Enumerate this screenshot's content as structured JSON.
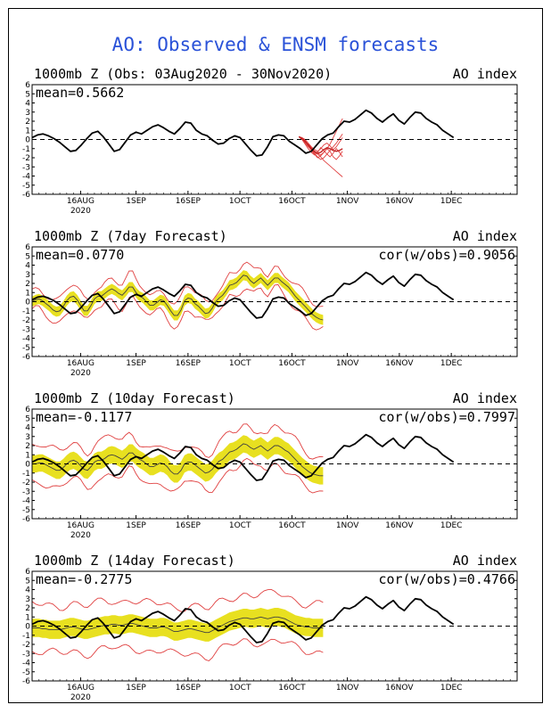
{
  "main_title": "AO: Observed & ENSM forecasts",
  "colors": {
    "title": "#2a52d8",
    "obs": "#000000",
    "forecast_band": "#e8e020",
    "forecast_spread": "#e04040",
    "ensemble_mean": "#404040"
  },
  "chart_data": [
    {
      "type": "line",
      "title": "1000mb Z (Obs: 03Aug2020 - 30Nov2020)",
      "index_label": "AO index",
      "mean_label": "mean=0.5662",
      "cor_label": "",
      "ylim": [
        -6,
        6
      ],
      "yticks": [
        "6",
        "5",
        "4",
        "3",
        "2",
        "1",
        "0",
        "-1",
        "-2",
        "-3",
        "-4",
        "-5",
        "-6"
      ],
      "xlim": [
        0,
        140
      ],
      "month_ticks": [
        {
          "day": 14,
          "label": "16AUG",
          "sub": "2020"
        },
        {
          "day": 30,
          "label": "1SEP",
          "sub": ""
        },
        {
          "day": 45,
          "label": "16SEP",
          "sub": ""
        },
        {
          "day": 60,
          "label": "1OCT",
          "sub": ""
        },
        {
          "day": 75,
          "label": "16OCT",
          "sub": ""
        },
        {
          "day": 91,
          "label": "1NOV",
          "sub": ""
        },
        {
          "day": 106,
          "label": "16NOV",
          "sub": ""
        },
        {
          "day": 121,
          "label": "1DEC",
          "sub": ""
        }
      ],
      "observed": [
        0.2,
        0.5,
        0.6,
        0.4,
        0.1,
        -0.3,
        -0.8,
        -1.3,
        -1.2,
        -0.6,
        0.1,
        0.7,
        0.9,
        0.3,
        -0.5,
        -1.3,
        -1.1,
        -0.3,
        0.5,
        0.8,
        0.6,
        1.0,
        1.4,
        1.6,
        1.3,
        0.9,
        0.6,
        1.2,
        1.9,
        1.8,
        1.0,
        0.6,
        0.4,
        -0.1,
        -0.5,
        -0.4,
        0.1,
        0.4,
        0.2,
        -0.5,
        -1.2,
        -1.8,
        -1.7,
        -0.8,
        0.3,
        0.5,
        0.4,
        -0.2,
        -0.6,
        -1.0,
        -1.5,
        -1.3,
        -0.6,
        0.1,
        0.5,
        0.7,
        1.4,
        2.0,
        1.9,
        2.2,
        2.7,
        3.2,
        2.9,
        2.3,
        1.9,
        2.4,
        2.8,
        2.1,
        1.7,
        2.4,
        3.0,
        2.9,
        2.3,
        1.9,
        1.6,
        1.0,
        0.6,
        0.2
      ],
      "forecast_mean": [
        0.3,
        0.1,
        -0.2,
        -0.6,
        -1.0,
        -1.3,
        -1.5,
        -1.4,
        -1.1,
        -0.9,
        -1.0,
        -1.2,
        -1.3,
        -1.2,
        -1.0
      ],
      "forecast_band_width": [],
      "forecast_spread": [],
      "ensemble_members": [
        [
          0.3,
          0.2,
          -0.2,
          -0.7,
          -1.2,
          -1.6,
          -2.0,
          -1.8,
          -1.4,
          -1.0,
          -0.5,
          0.2,
          0.9,
          1.6,
          2.3
        ],
        [
          0.3,
          0.0,
          -0.4,
          -0.8,
          -1.1,
          -1.4,
          -1.6,
          -1.9,
          -2.3,
          -2.6,
          -2.9,
          -3.2,
          -3.5,
          -3.8,
          -4.1
        ],
        [
          0.3,
          0.1,
          -0.3,
          -0.5,
          -0.9,
          -1.3,
          -1.5,
          -1.7,
          -1.4,
          -1.0,
          -1.3,
          -1.9,
          -2.2,
          -1.8,
          -1.3
        ],
        [
          0.3,
          0.2,
          0.0,
          -0.4,
          -0.8,
          -1.1,
          -1.3,
          -1.0,
          -0.6,
          -0.4,
          -0.7,
          -1.1,
          -0.8,
          -0.3,
          0.2
        ],
        [
          0.3,
          0.0,
          -0.5,
          -1.0,
          -1.4,
          -1.7,
          -1.4,
          -0.9,
          -1.2,
          -1.6,
          -1.9,
          -1.5,
          -1.0,
          -1.4,
          -1.9
        ],
        [
          0.3,
          0.1,
          -0.1,
          -0.6,
          -1.1,
          -1.5,
          -1.9,
          -2.2,
          -2.0,
          -1.6,
          -1.2,
          -0.8,
          -0.4,
          0.1,
          0.6
        ]
      ]
    },
    {
      "type": "line",
      "title": "1000mb Z (7day Forecast)",
      "index_label": "AO index",
      "mean_label": "mean=0.0770",
      "cor_label": "cor(w/obs)=0.9056",
      "ylim": [
        -6,
        6
      ],
      "yticks": [
        "6",
        "5",
        "4",
        "3",
        "2",
        "1",
        "0",
        "-1",
        "-2",
        "-3",
        "-4",
        "-5",
        "-6"
      ],
      "xlim": [
        0,
        140
      ],
      "month_ticks": [
        {
          "day": 14,
          "label": "16AUG",
          "sub": "2020"
        },
        {
          "day": 30,
          "label": "1SEP",
          "sub": ""
        },
        {
          "day": 45,
          "label": "16SEP",
          "sub": ""
        },
        {
          "day": 60,
          "label": "1OCT",
          "sub": ""
        },
        {
          "day": 75,
          "label": "16OCT",
          "sub": ""
        },
        {
          "day": 91,
          "label": "1NOV",
          "sub": ""
        },
        {
          "day": 106,
          "label": "16NOV",
          "sub": ""
        },
        {
          "day": 121,
          "label": "1DEC",
          "sub": ""
        }
      ],
      "observed": [
        0.2,
        0.5,
        0.6,
        0.4,
        0.1,
        -0.3,
        -0.8,
        -1.3,
        -1.2,
        -0.6,
        0.1,
        0.7,
        0.9,
        0.3,
        -0.5,
        -1.3,
        -1.1,
        -0.3,
        0.5,
        0.8,
        0.6,
        1.0,
        1.4,
        1.6,
        1.3,
        0.9,
        0.6,
        1.2,
        1.9,
        1.8,
        1.0,
        0.6,
        0.4,
        -0.1,
        -0.5,
        -0.4,
        0.1,
        0.4,
        0.2,
        -0.5,
        -1.2,
        -1.8,
        -1.7,
        -0.8,
        0.3,
        0.5,
        0.4,
        -0.2,
        -0.6,
        -1.0,
        -1.5,
        -1.3,
        -0.6,
        0.1,
        0.5,
        0.7,
        1.4,
        2.0,
        1.9,
        2.2,
        2.7,
        3.2,
        2.9,
        2.3,
        1.9,
        2.4,
        2.8,
        2.1,
        1.7,
        2.4,
        3.0,
        2.9,
        2.3,
        1.9,
        1.6,
        1.0,
        0.6,
        0.2
      ],
      "forecast_mean": [
        0.0,
        0.2,
        0.3,
        0.1,
        -0.2,
        -0.5,
        -0.9,
        -1.1,
        -1.0,
        -0.5,
        0.1,
        0.5,
        0.6,
        0.2,
        -0.4,
        -1.0,
        -1.0,
        -0.4,
        0.3,
        0.6,
        0.6,
        0.9,
        1.2,
        1.4,
        1.2,
        0.9,
        0.7,
        1.1,
        1.6,
        1.6,
        1.0,
        0.6,
        0.4,
        0.0,
        -0.4,
        -0.4,
        -0.1,
        0.2,
        0.1,
        -0.4,
        -1.0,
        -1.5,
        -1.5,
        -0.9,
        0.1,
        0.4,
        0.3,
        -0.2,
        -0.5,
        -0.9,
        -1.3,
        -1.2,
        -0.7,
        0.0,
        0.4,
        0.7,
        1.2,
        1.8,
        1.9,
        2.1,
        2.5,
        2.9,
        2.8,
        2.3,
        2.0,
        2.3,
        2.6,
        2.2,
        1.8,
        2.2,
        2.6,
        2.6,
        2.2,
        1.9,
        1.6,
        1.1,
        0.6,
        0.2,
        -0.2,
        -0.6,
        -1.0,
        -1.4,
        -1.7,
        -1.9,
        -2.0
      ],
      "forecast_band_width": 0.55,
      "forecast_spread": 1.2,
      "ensemble_members": []
    },
    {
      "type": "line",
      "title": "1000mb Z (10day Forecast)",
      "index_label": "AO index",
      "mean_label": "mean=-0.1177",
      "cor_label": "cor(w/obs)=0.7997",
      "ylim": [
        -6,
        6
      ],
      "yticks": [
        "6",
        "5",
        "4",
        "3",
        "2",
        "1",
        "0",
        "-1",
        "-2",
        "-3",
        "-4",
        "-5",
        "-6"
      ],
      "xlim": [
        0,
        140
      ],
      "month_ticks": [
        {
          "day": 14,
          "label": "16AUG",
          "sub": "2020"
        },
        {
          "day": 30,
          "label": "1SEP",
          "sub": ""
        },
        {
          "day": 45,
          "label": "16SEP",
          "sub": ""
        },
        {
          "day": 60,
          "label": "1OCT",
          "sub": ""
        },
        {
          "day": 75,
          "label": "16OCT",
          "sub": ""
        },
        {
          "day": 91,
          "label": "1NOV",
          "sub": ""
        },
        {
          "day": 106,
          "label": "16NOV",
          "sub": ""
        },
        {
          "day": 121,
          "label": "1DEC",
          "sub": ""
        }
      ],
      "observed": [
        0.2,
        0.5,
        0.6,
        0.4,
        0.1,
        -0.3,
        -0.8,
        -1.3,
        -1.2,
        -0.6,
        0.1,
        0.7,
        0.9,
        0.3,
        -0.5,
        -1.3,
        -1.1,
        -0.3,
        0.5,
        0.8,
        0.6,
        1.0,
        1.4,
        1.6,
        1.3,
        0.9,
        0.6,
        1.2,
        1.9,
        1.8,
        1.0,
        0.6,
        0.4,
        -0.1,
        -0.5,
        -0.4,
        0.1,
        0.4,
        0.2,
        -0.5,
        -1.2,
        -1.8,
        -1.7,
        -0.8,
        0.3,
        0.5,
        0.4,
        -0.2,
        -0.6,
        -1.0,
        -1.5,
        -1.3,
        -0.6,
        0.1,
        0.5,
        0.7,
        1.4,
        2.0,
        1.9,
        2.2,
        2.7,
        3.2,
        2.9,
        2.3,
        1.9,
        2.4,
        2.8,
        2.1,
        1.7,
        2.4,
        3.0,
        2.9,
        2.3,
        1.9,
        1.6,
        1.0,
        0.6,
        0.2
      ],
      "forecast_mean": [
        0.0,
        0.0,
        0.1,
        0.1,
        -0.1,
        -0.3,
        -0.5,
        -0.7,
        -0.7,
        -0.4,
        0.0,
        0.3,
        0.4,
        0.2,
        -0.2,
        -0.6,
        -0.7,
        -0.3,
        0.2,
        0.4,
        0.4,
        0.6,
        0.9,
        1.0,
        0.9,
        0.7,
        0.5,
        0.8,
        1.2,
        1.2,
        0.8,
        0.5,
        0.3,
        0.0,
        -0.3,
        -0.3,
        -0.1,
        0.1,
        0.0,
        -0.3,
        -0.8,
        -1.1,
        -1.1,
        -0.7,
        0.0,
        0.2,
        0.2,
        -0.1,
        -0.4,
        -0.7,
        -1.0,
        -0.9,
        -0.6,
        -0.1,
        0.3,
        0.5,
        0.9,
        1.3,
        1.4,
        1.6,
        1.9,
        2.2,
        2.1,
        1.8,
        1.6,
        1.8,
        2.0,
        1.7,
        1.4,
        1.7,
        2.0,
        2.0,
        1.8,
        1.5,
        1.3,
        0.9,
        0.5,
        0.1,
        -0.3,
        -0.6,
        -0.9,
        -1.1,
        -1.2,
        -1.3,
        -1.3
      ],
      "forecast_band_width": 0.95,
      "forecast_spread": 2.0,
      "ensemble_members": []
    },
    {
      "type": "line",
      "title": "1000mb Z (14day Forecast)",
      "index_label": "AO index",
      "mean_label": "mean=-0.2775",
      "cor_label": "cor(w/obs)=0.4766",
      "ylim": [
        -6,
        6
      ],
      "yticks": [
        "6",
        "5",
        "4",
        "3",
        "2",
        "1",
        "0",
        "-1",
        "-2",
        "-3",
        "-4",
        "-5",
        "-6"
      ],
      "xlim": [
        0,
        140
      ],
      "month_ticks": [
        {
          "day": 14,
          "label": "16AUG",
          "sub": "2020"
        },
        {
          "day": 30,
          "label": "1SEP",
          "sub": ""
        },
        {
          "day": 45,
          "label": "16SEP",
          "sub": ""
        },
        {
          "day": 60,
          "label": "1OCT",
          "sub": ""
        },
        {
          "day": 75,
          "label": "16OCT",
          "sub": ""
        },
        {
          "day": 91,
          "label": "1NOV",
          "sub": ""
        },
        {
          "day": 106,
          "label": "16NOV",
          "sub": ""
        },
        {
          "day": 121,
          "label": "1DEC",
          "sub": ""
        }
      ],
      "observed": [
        0.2,
        0.5,
        0.6,
        0.4,
        0.1,
        -0.3,
        -0.8,
        -1.3,
        -1.2,
        -0.6,
        0.1,
        0.7,
        0.9,
        0.3,
        -0.5,
        -1.3,
        -1.1,
        -0.3,
        0.5,
        0.8,
        0.6,
        1.0,
        1.4,
        1.6,
        1.3,
        0.9,
        0.6,
        1.2,
        1.9,
        1.8,
        1.0,
        0.6,
        0.4,
        -0.1,
        -0.5,
        -0.4,
        0.1,
        0.4,
        0.2,
        -0.5,
        -1.2,
        -1.8,
        -1.7,
        -0.8,
        0.3,
        0.5,
        0.4,
        -0.2,
        -0.6,
        -1.0,
        -1.5,
        -1.3,
        -0.6,
        0.1,
        0.5,
        0.7,
        1.4,
        2.0,
        1.9,
        2.2,
        2.7,
        3.2,
        2.9,
        2.3,
        1.9,
        2.4,
        2.8,
        2.1,
        1.7,
        2.4,
        3.0,
        2.9,
        2.3,
        1.9,
        1.6,
        1.0,
        0.6,
        0.2
      ],
      "forecast_mean": [
        -0.2,
        -0.2,
        -0.2,
        -0.3,
        -0.3,
        -0.4,
        -0.4,
        -0.4,
        -0.4,
        -0.3,
        -0.2,
        -0.1,
        -0.1,
        -0.2,
        -0.3,
        -0.4,
        -0.4,
        -0.3,
        -0.2,
        -0.1,
        0.0,
        0.1,
        0.1,
        0.2,
        0.2,
        0.1,
        0.1,
        0.2,
        0.3,
        0.3,
        0.2,
        0.1,
        0.0,
        -0.1,
        -0.2,
        -0.2,
        -0.2,
        -0.1,
        -0.1,
        -0.2,
        -0.4,
        -0.6,
        -0.6,
        -0.5,
        -0.4,
        -0.3,
        -0.3,
        -0.4,
        -0.5,
        -0.6,
        -0.7,
        -0.7,
        -0.5,
        -0.3,
        -0.1,
        0.1,
        0.3,
        0.5,
        0.6,
        0.7,
        0.8,
        0.9,
        0.9,
        0.8,
        0.8,
        0.9,
        1.0,
        0.9,
        0.8,
        0.9,
        1.0,
        1.0,
        0.9,
        0.8,
        0.6,
        0.4,
        0.2,
        0.1,
        0.0,
        -0.1,
        -0.1,
        -0.2,
        -0.2,
        -0.2,
        -0.2
      ],
      "forecast_band_width": 1.0,
      "forecast_spread": 2.6,
      "ensemble_members": []
    }
  ]
}
